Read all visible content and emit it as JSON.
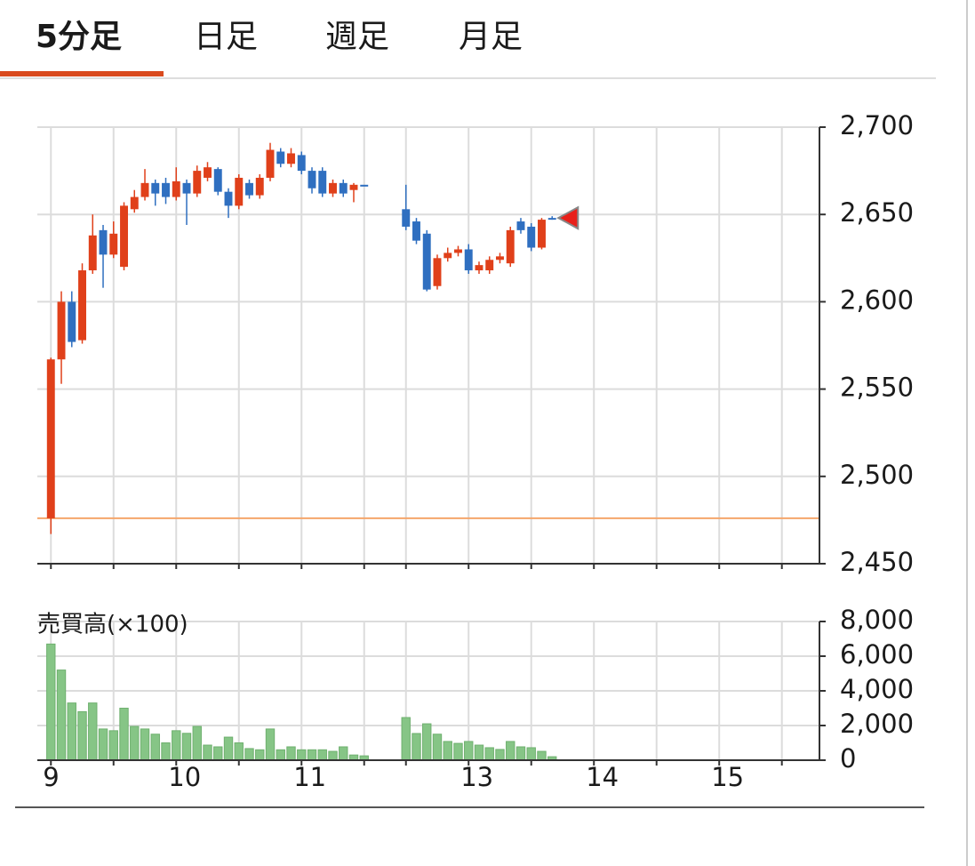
{
  "tabs": [
    "5分足",
    "日足",
    "週足",
    "月足"
  ],
  "active_tab": 0,
  "chart_data": [
    {
      "type": "candlestick",
      "x": [
        0,
        1,
        2,
        3,
        4,
        5,
        6,
        7,
        8,
        9,
        10,
        11,
        12,
        13,
        14,
        15,
        16,
        17,
        18,
        19,
        20,
        21,
        22,
        23,
        24,
        25,
        26,
        27,
        28,
        29,
        30,
        34,
        35,
        36,
        37,
        38,
        39,
        40,
        41,
        42,
        43,
        44,
        45,
        46,
        47,
        48
      ],
      "open": [
        2476,
        2567,
        2600,
        2578,
        2618,
        2641,
        2627,
        2620,
        2653,
        2660,
        2668,
        2668,
        2660,
        2668,
        2662,
        2671,
        2676,
        2663,
        2655,
        2668,
        2661,
        2671,
        2686,
        2679,
        2684,
        2675,
        2675,
        2662,
        2668,
        2664,
        2667,
        2653,
        2646,
        2639,
        2609,
        2625,
        2628,
        2630,
        2618,
        2618,
        2624,
        2622,
        2646,
        2643,
        2631,
        2648
      ],
      "high": [
        2568,
        2606,
        2606,
        2622,
        2650,
        2644,
        2646,
        2657,
        2664,
        2676,
        2670,
        2671,
        2677,
        2670,
        2678,
        2680,
        2677,
        2665,
        2673,
        2670,
        2673,
        2691,
        2688,
        2688,
        2686,
        2677,
        2677,
        2670,
        2670,
        2668,
        2667,
        2667,
        2648,
        2641,
        2627,
        2631,
        2632,
        2633,
        2623,
        2626,
        2628,
        2643,
        2648,
        2645,
        2648,
        2649
      ],
      "low": [
        2467,
        2553,
        2574,
        2576,
        2616,
        2608,
        2625,
        2618,
        2651,
        2658,
        2655,
        2656,
        2658,
        2644,
        2660,
        2669,
        2661,
        2648,
        2653,
        2659,
        2659,
        2669,
        2677,
        2677,
        2673,
        2662,
        2660,
        2660,
        2660,
        2657,
        2667,
        2641,
        2633,
        2606,
        2607,
        2623,
        2626,
        2616,
        2616,
        2616,
        2622,
        2620,
        2639,
        2629,
        2630,
        2647
      ],
      "close": [
        2567,
        2600,
        2577,
        2618,
        2638,
        2627,
        2639,
        2655,
        2660,
        2668,
        2662,
        2660,
        2669,
        2662,
        2675,
        2677,
        2663,
        2655,
        2671,
        2661,
        2671,
        2687,
        2679,
        2685,
        2675,
        2665,
        2662,
        2668,
        2662,
        2667,
        2667,
        2643,
        2635,
        2607,
        2625,
        2628,
        2630,
        2618,
        2621,
        2624,
        2626,
        2641,
        2641,
        2631,
        2647,
        2648
      ],
      "up_color": "#e0401a",
      "down_color": "#2f6fc0",
      "xlim": [
        -1.3,
        73.6
      ],
      "xgrid": [
        0,
        6,
        12,
        18,
        24,
        30,
        34,
        40,
        46,
        52,
        58,
        64,
        70
      ],
      "ylim": [
        2450,
        2700
      ],
      "yticks": [
        {
          "value": 2450,
          "label": "2,450"
        },
        {
          "value": 2500,
          "label": "2,500"
        },
        {
          "value": 2550,
          "label": "2,550"
        },
        {
          "value": 2600,
          "label": "2,600"
        },
        {
          "value": 2650,
          "label": "2,650"
        },
        {
          "value": 2700,
          "label": "2,700"
        }
      ],
      "grid": true,
      "reference_line": {
        "value": 2476,
        "color": "#f5a66b"
      },
      "last_price_marker": {
        "value": 2648,
        "color": "#e8201a"
      }
    },
    {
      "type": "bar",
      "ylabel": "売買高(×100)",
      "x": [
        0,
        1,
        2,
        3,
        4,
        5,
        6,
        7,
        8,
        9,
        10,
        11,
        12,
        13,
        14,
        15,
        16,
        17,
        18,
        19,
        20,
        21,
        22,
        23,
        24,
        25,
        26,
        27,
        28,
        29,
        30,
        34,
        35,
        36,
        37,
        38,
        39,
        40,
        41,
        42,
        43,
        44,
        45,
        46,
        47,
        48
      ],
      "values": [
        6700,
        5200,
        3300,
        2800,
        3300,
        1800,
        1700,
        3000,
        1950,
        1800,
        1500,
        1000,
        1700,
        1550,
        1950,
        870,
        770,
        1330,
        1000,
        670,
        600,
        1800,
        600,
        770,
        600,
        600,
        600,
        510,
        770,
        300,
        250,
        2460,
        1540,
        2100,
        1500,
        1080,
        970,
        1080,
        870,
        720,
        620,
        1080,
        770,
        720,
        510,
        200
      ],
      "color": "#86c586",
      "xlim": [
        -1.3,
        73.6
      ],
      "xgrid": [
        0,
        6,
        12,
        18,
        24,
        30,
        34,
        40,
        46,
        52,
        58,
        64,
        70
      ],
      "xticks": [
        {
          "value": 0,
          "label": "9"
        },
        {
          "value": 12,
          "label": "10"
        },
        {
          "value": 24,
          "label": "11"
        },
        {
          "value": 40,
          "label": "13"
        },
        {
          "value": 52,
          "label": "14"
        },
        {
          "value": 64,
          "label": "15"
        }
      ],
      "ylim": [
        0,
        8000
      ],
      "yticks": [
        0,
        {
          "value": 2000,
          "label": "2,000"
        },
        {
          "value": 4000,
          "label": "4,000"
        },
        {
          "value": 6000,
          "label": "6,000"
        },
        {
          "value": 8000,
          "label": "8,000"
        }
      ],
      "grid": true
    }
  ]
}
